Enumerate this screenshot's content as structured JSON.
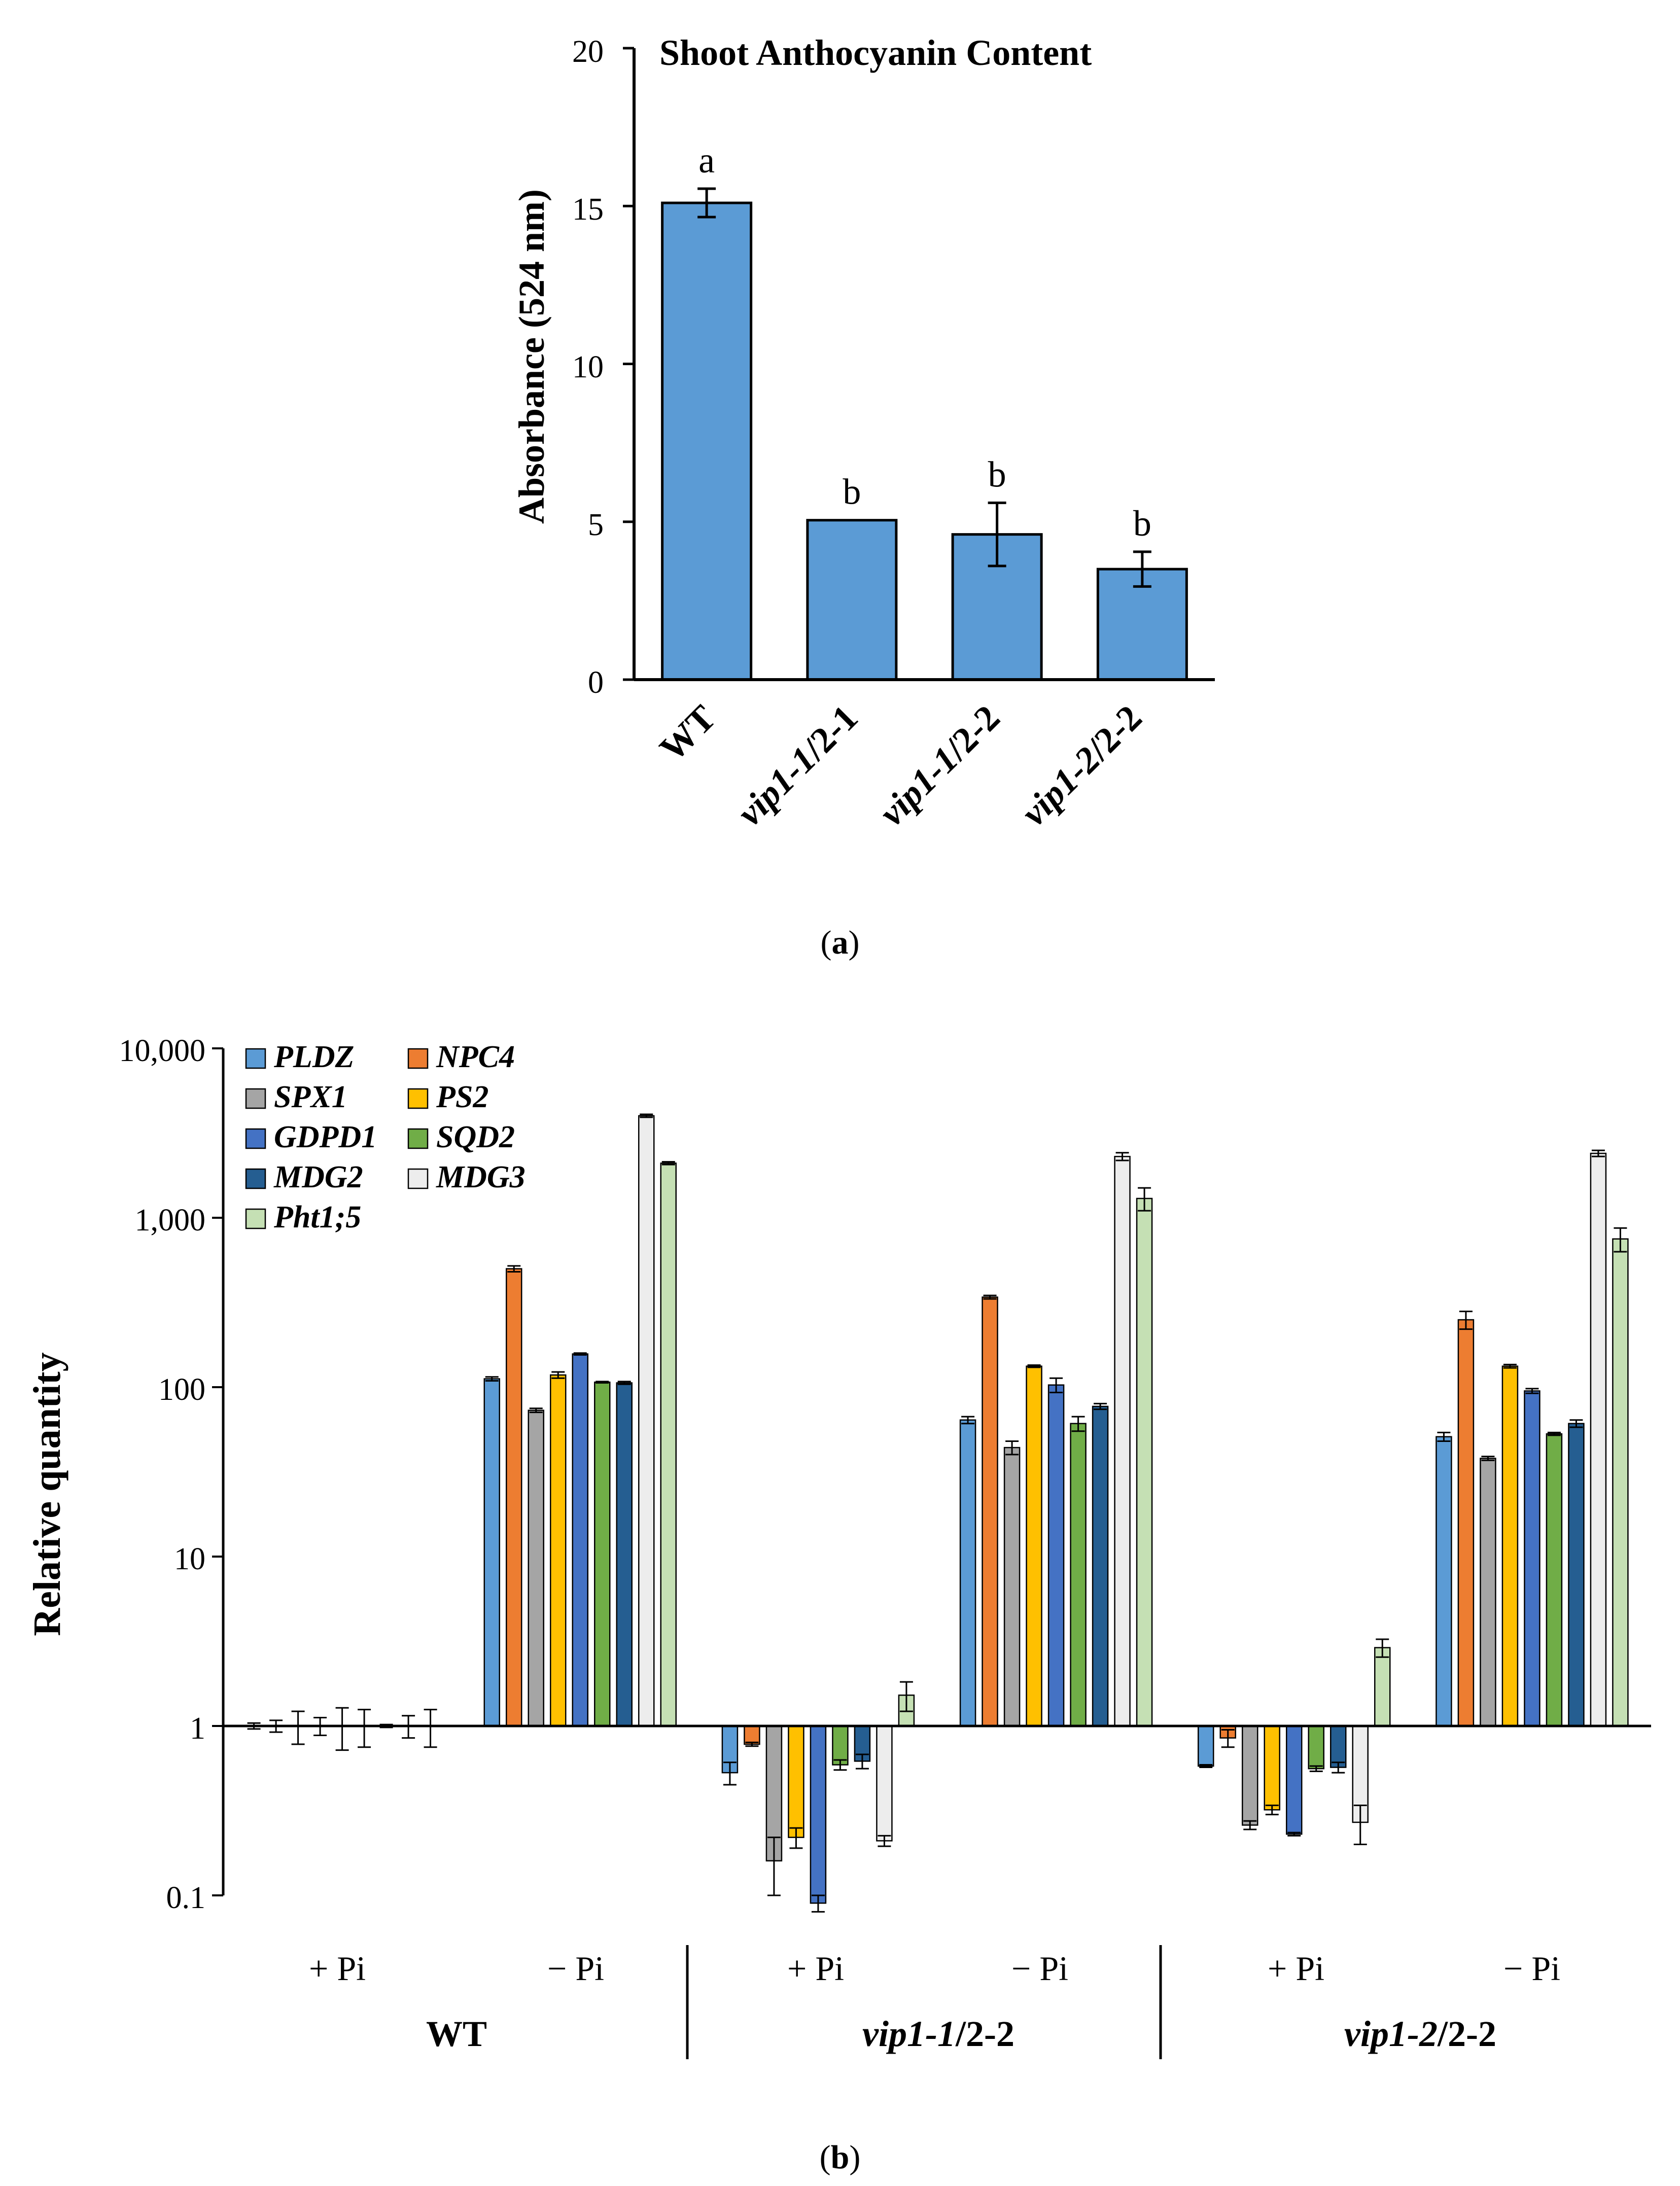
{
  "colors": {
    "axis": "#000000",
    "bar_a": "#5B9BD5",
    "bar_stroke": "#000000"
  },
  "chart_data": [
    {
      "type": "bar",
      "panel_label": "(a)",
      "panel_letter": "a",
      "title": "Shoot Anthocyanin Content",
      "ylabel": "Absorbance (524 nm)",
      "xlabel": "",
      "ylim": [
        0,
        20
      ],
      "yticks": [
        "0",
        "5",
        "10",
        "15",
        "20"
      ],
      "categories": [
        {
          "label": "WT",
          "prefix": "WT",
          "suffix": ""
        },
        {
          "label": "vip1-1/2-1",
          "prefix": "vip1-1",
          "suffix": "/2-1"
        },
        {
          "label": "vip1-1/2-2",
          "prefix": "vip1-1",
          "suffix": "/2-2"
        },
        {
          "label": "vip1-2/2-2",
          "prefix": "vip1-2",
          "suffix": "/2-2"
        }
      ],
      "values": [
        15.1,
        5.05,
        4.6,
        3.5
      ],
      "errors": [
        0.45,
        0.0,
        1.0,
        0.55
      ],
      "significance": [
        "a",
        "b",
        "b",
        "b"
      ]
    },
    {
      "type": "bar",
      "scale": "log",
      "baseline": 1,
      "panel_label": "(b)",
      "panel_letter": "b",
      "ylabel": "Relative quantity",
      "ylim": [
        0.1,
        10000
      ],
      "yticks": [
        "0.1",
        "1",
        "10",
        "100",
        "1,000",
        "10,000"
      ],
      "conditions": [
        "+ Pi",
        "− Pi",
        "+ Pi",
        "− Pi",
        "+ Pi",
        "− Pi"
      ],
      "genotypes": [
        {
          "label": "WT",
          "prefix": "WT",
          "suffix": ""
        },
        {
          "label": "vip1-1/2-2",
          "prefix": "vip1-1",
          "suffix": "/2-2"
        },
        {
          "label": "vip1-2/2-2",
          "prefix": "vip1-2",
          "suffix": "/2-2"
        }
      ],
      "series": [
        {
          "name": "PLDZ",
          "color": "#5B9BD5",
          "values": [
            1.0,
            112,
            0.53,
            64,
            0.58,
            51
          ],
          "errors": [
            0.04,
            3,
            0.08,
            3,
            0.01,
            3
          ]
        },
        {
          "name": "NPC4",
          "color": "#ED7D31",
          "values": [
            1.0,
            500,
            0.78,
            340,
            0.85,
            250
          ],
          "errors": [
            0.08,
            20,
            0.02,
            8,
            0.1,
            30
          ]
        },
        {
          "name": "SPX1",
          "color": "#A5A5A5",
          "values": [
            1.0,
            73,
            0.16,
            44,
            0.26,
            38
          ],
          "errors": [
            0.22,
            2,
            0.06,
            4,
            0.015,
            1
          ]
        },
        {
          "name": "PS2",
          "color": "#FFC000",
          "values": [
            1.0,
            118,
            0.22,
            133,
            0.32,
            133
          ],
          "errors": [
            0.12,
            5,
            0.03,
            2,
            0.02,
            3
          ]
        },
        {
          "name": "GDPD1",
          "color": "#4472C4",
          "values": [
            1.0,
            157,
            0.09,
            103,
            0.23,
            95
          ],
          "errors": [
            0.28,
            2,
            0.01,
            10,
            0.005,
            3
          ]
        },
        {
          "name": "SQD2",
          "color": "#70AD47",
          "values": [
            1.0,
            107,
            0.59,
            61,
            0.56,
            53
          ],
          "errors": [
            0.25,
            1,
            0.04,
            6,
            0.02,
            1
          ]
        },
        {
          "name": "MDG2",
          "color": "#255E91",
          "values": [
            1.0,
            106,
            0.62,
            77,
            0.57,
            61
          ],
          "errors": [
            0.02,
            2,
            0.06,
            3,
            0.04,
            3
          ]
        },
        {
          "name": "MDG3",
          "color": "#EDEDED",
          "values": [
            1.0,
            4000,
            0.21,
            2300,
            0.27,
            2400
          ],
          "errors": [
            0.15,
            80,
            0.015,
            120,
            0.07,
            100
          ]
        },
        {
          "name": "Pht1;5",
          "color": "#C5E0B4",
          "values": [
            1.0,
            2100,
            1.52,
            1300,
            2.9,
            750
          ],
          "errors": [
            0.25,
            40,
            0.3,
            200,
            0.35,
            120
          ]
        }
      ]
    }
  ]
}
